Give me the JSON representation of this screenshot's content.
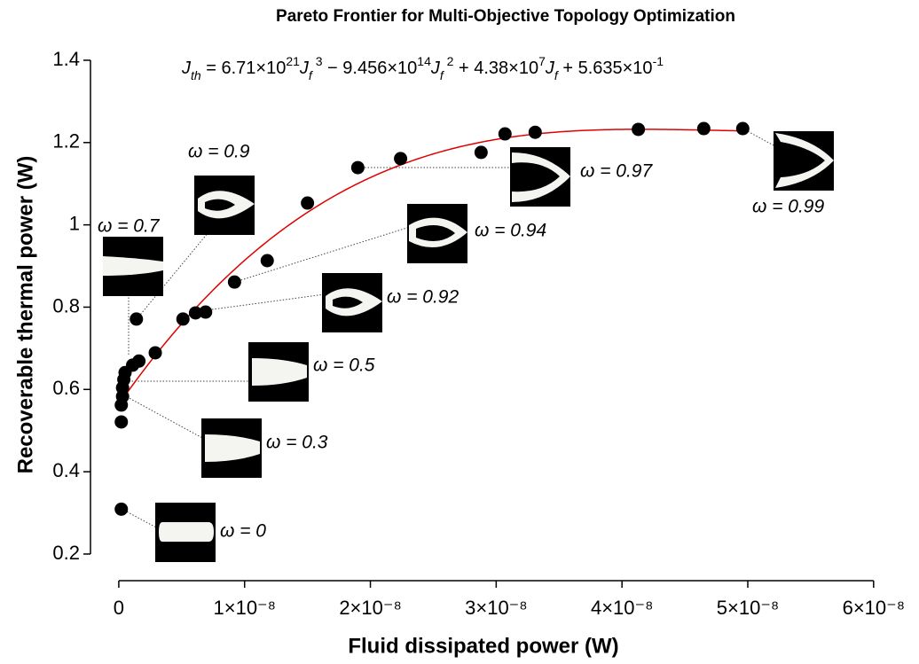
{
  "chart_data": {
    "type": "scatter",
    "title": "Pareto Frontier for Multi-Objective Topology Optimization",
    "x_label": "Fluid dissipated power (W)",
    "y_label": "Recoverable thermal power (W)",
    "equation": [
      {
        "text": "J",
        "style": "italic"
      },
      {
        "text": "th",
        "style": "sub"
      },
      {
        "text": " = 6.71×10",
        "style": "normal"
      },
      {
        "text": "21",
        "style": "sup"
      },
      {
        "text": "J",
        "style": "italic"
      },
      {
        "text": "f",
        "style": "sub"
      },
      {
        "text": " 3",
        "style": "sup"
      },
      {
        "text": " − 9.456×10",
        "style": "normal"
      },
      {
        "text": "14",
        "style": "sup"
      },
      {
        "text": "J",
        "style": "italic"
      },
      {
        "text": "f",
        "style": "sub"
      },
      {
        "text": " 2",
        "style": "sup"
      },
      {
        "text": " + 4.38×10",
        "style": "normal"
      },
      {
        "text": "7",
        "style": "sup"
      },
      {
        "text": "J",
        "style": "italic"
      },
      {
        "text": "f",
        "style": "sub"
      },
      {
        "text": " + 5.635×10",
        "style": "normal"
      },
      {
        "text": "-1",
        "style": "sup"
      }
    ],
    "x": [
      2e-10,
      2e-10,
      2e-10,
      3e-10,
      3e-10,
      4e-10,
      5e-10,
      1.1e-09,
      1.6e-09,
      2.9e-09,
      1.4e-09,
      5.1e-09,
      6.1e-09,
      6.9e-09,
      9.2e-09,
      1.18e-08,
      1.5e-08,
      1.9e-08,
      2.24e-08,
      2.88e-08,
      3.07e-08,
      3.31e-08,
      4.13e-08,
      4.65e-08,
      4.96e-08
    ],
    "values": [
      0.309,
      0.521,
      0.562,
      0.583,
      0.604,
      0.624,
      0.641,
      0.659,
      0.669,
      0.689,
      0.771,
      0.771,
      0.786,
      0.788,
      0.861,
      0.913,
      1.053,
      1.139,
      1.161,
      1.176,
      1.221,
      1.225,
      1.232,
      1.234,
      1.234
    ],
    "color": "#000000",
    "fit": {
      "coefficients": [
        6.71e+21,
        -945600000000000.0,
        43800000.0,
        0.5635
      ],
      "x_range": [
        0,
        5e-08
      ],
      "color": "#e00000"
    },
    "annotations": [
      "ω = 0",
      "ω = 0.3",
      "ω = 0.5",
      "ω = 0.7",
      "ω = 0.9",
      "ω = 0.92",
      "ω = 0.94",
      "ω = 0.97",
      "ω = 0.99"
    ],
    "xlim": [
      -2.25e-09,
      6.1e-08
    ],
    "ylim": [
      0.14,
      1.44
    ],
    "xticks": [
      0,
      {
        "value": 1e-08,
        "label": "1×10⁻⁸"
      },
      {
        "value": 2e-08,
        "label": "2×10⁻⁸"
      },
      {
        "value": 3e-08,
        "label": "3×10⁻⁸"
      },
      {
        "value": 4e-08,
        "label": "4×10⁻⁸"
      },
      {
        "value": 5e-08,
        "label": "5×10⁻⁸"
      },
      {
        "value": 6e-08,
        "label": "6×10⁻⁸"
      }
    ],
    "yticks": [
      0.2,
      0.4,
      0.6,
      0.8,
      1,
      1.2,
      1.4
    ]
  }
}
